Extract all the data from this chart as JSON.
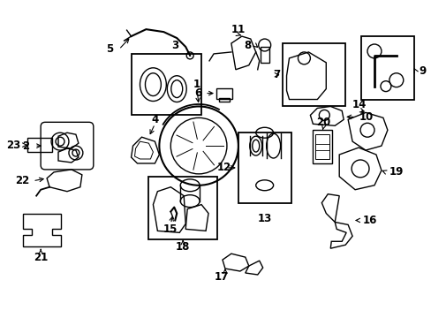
{
  "bg_color": "#ffffff",
  "fig_width": 4.89,
  "fig_height": 3.6,
  "dpi": 100,
  "label_fontsize": 8.5,
  "label_color": "black",
  "line_color": "black",
  "lw": 1.0
}
